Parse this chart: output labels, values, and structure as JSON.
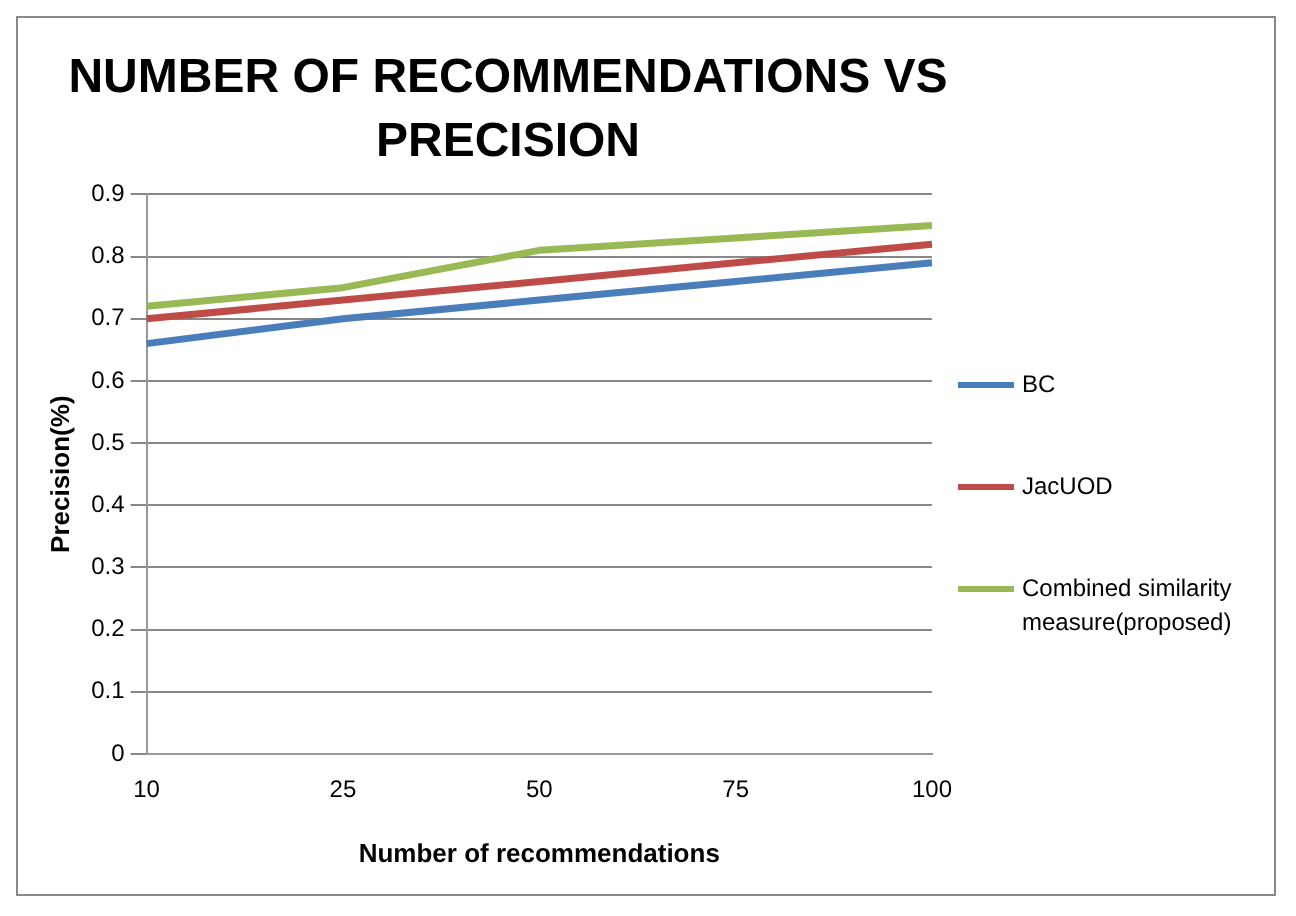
{
  "chart_data": {
    "type": "line",
    "title": "NUMBER OF RECOMMENDATIONS VS PRECISION",
    "xlabel": "Number of recommendations",
    "ylabel": "Precision(%)",
    "categories": [
      "10",
      "25",
      "50",
      "75",
      "100"
    ],
    "series": [
      {
        "name": "BC",
        "color": "#4a7ebb",
        "values": [
          0.66,
          0.7,
          0.73,
          0.76,
          0.79
        ]
      },
      {
        "name": "JacUOD",
        "color": "#be4b48",
        "values": [
          0.7,
          0.73,
          0.76,
          0.79,
          0.82
        ]
      },
      {
        "name": "Combined similarity measure(proposed)",
        "color": "#98b954",
        "values": [
          0.72,
          0.75,
          0.81,
          0.83,
          0.85
        ]
      }
    ],
    "ylim": [
      0,
      0.9
    ],
    "yticks": [
      0,
      0.1,
      0.2,
      0.3,
      0.4,
      0.5,
      0.6,
      0.7,
      0.8,
      0.9
    ],
    "grid": "y",
    "legend": "right",
    "marker": "none",
    "line_style": "solid"
  }
}
